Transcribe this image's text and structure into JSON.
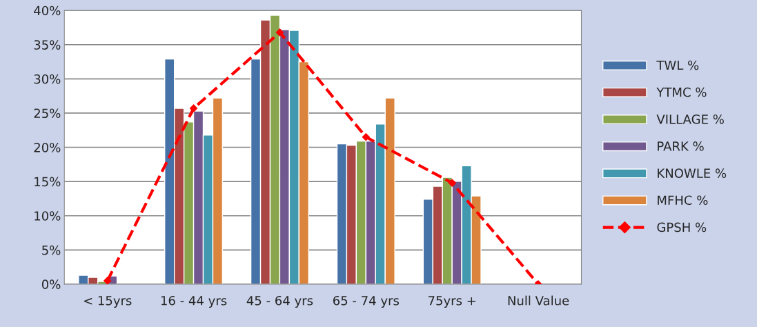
{
  "chart_data": {
    "type": "bar",
    "categories": [
      "< 15yrs",
      "16 - 44 yrs",
      "45 - 64 yrs",
      "65 - 74 yrs",
      "75yrs +",
      "Null Value"
    ],
    "series": [
      {
        "name": "TWL %",
        "color": "#4572a7",
        "values": [
          1.3,
          32.9,
          32.9,
          20.5,
          12.4,
          null
        ]
      },
      {
        "name": "YTMC %",
        "color": "#aa4643",
        "values": [
          1.0,
          25.7,
          38.6,
          20.3,
          14.3,
          null
        ]
      },
      {
        "name": "VILLAGE %",
        "color": "#89a54e",
        "values": [
          0.4,
          23.7,
          39.3,
          20.9,
          15.6,
          null
        ]
      },
      {
        "name": "PARK %",
        "color": "#71588f",
        "values": [
          1.2,
          25.3,
          37.2,
          20.9,
          15.0,
          null
        ]
      },
      {
        "name": "KNOWLE %",
        "color": "#4198af",
        "values": [
          null,
          21.8,
          37.1,
          23.4,
          17.3,
          null
        ]
      },
      {
        "name": "MFHC %",
        "color": "#db843d",
        "values": [
          null,
          27.2,
          32.5,
          27.2,
          12.9,
          null
        ]
      },
      {
        "name": "GPSH %",
        "color": "#ff0000",
        "type": "line",
        "marker": "diamond",
        "line_style": "dashed",
        "values": [
          0.5,
          25.7,
          36.8,
          21.5,
          14.8,
          0
        ]
      }
    ],
    "ylim": [
      0,
      40
    ],
    "yticks": [
      {
        "value": 0,
        "label": "0%"
      },
      {
        "value": 5,
        "label": "5%"
      },
      {
        "value": 10,
        "label": "10%"
      },
      {
        "value": 15,
        "label": "15%"
      },
      {
        "value": 20,
        "label": "20%"
      },
      {
        "value": 25,
        "label": "25%"
      },
      {
        "value": 30,
        "label": "30%"
      },
      {
        "value": 35,
        "label": "35%"
      },
      {
        "value": 40,
        "label": "40%"
      }
    ],
    "grid": "y",
    "legend": "right"
  }
}
